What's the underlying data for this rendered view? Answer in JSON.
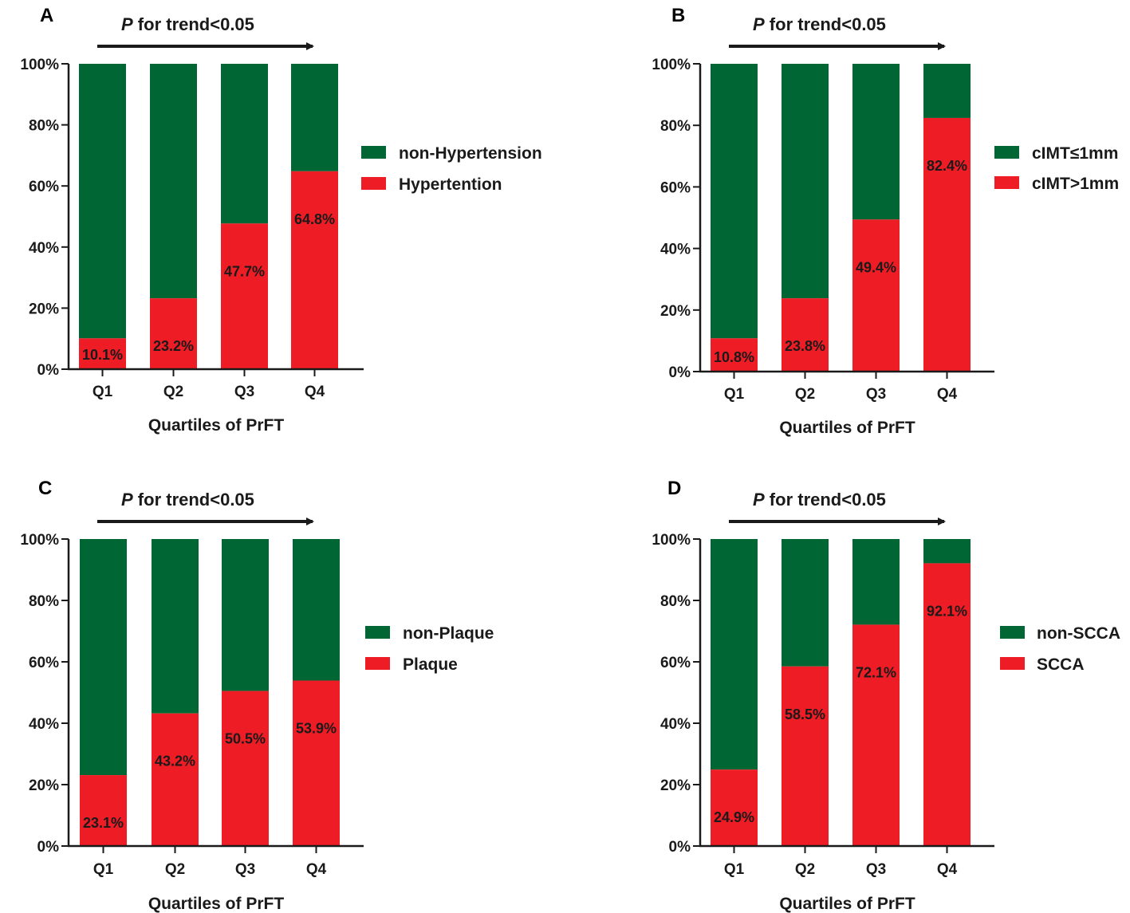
{
  "colors": {
    "negative": "#006633",
    "positive": "#ee1c25",
    "axis": "#1a1a1a"
  },
  "chart_data": [
    {
      "panel": "A",
      "type": "bar",
      "stacked": true,
      "annotation": {
        "italic": "P",
        "text": " for trend<0.05"
      },
      "categories": [
        "Q1",
        "Q2",
        "Q3",
        "Q4"
      ],
      "series": [
        {
          "name": "non-Hypertension",
          "values": [
            89.9,
            76.8,
            52.3,
            35.2
          ]
        },
        {
          "name": "Hypertention",
          "values": [
            10.1,
            23.2,
            47.7,
            64.8
          ]
        }
      ],
      "labels": [
        "10.1%",
        "23.2%",
        "47.7%",
        "64.8%"
      ],
      "yticks": [
        "0%",
        "20%",
        "40%",
        "60%",
        "80%",
        "100%"
      ],
      "xlabel": "Quartiles of PrFT",
      "ylim": [
        0,
        100
      ],
      "legend_position": "right"
    },
    {
      "panel": "B",
      "type": "bar",
      "stacked": true,
      "annotation": {
        "italic": "P",
        "text": " for trend<0.05"
      },
      "categories": [
        "Q1",
        "Q2",
        "Q3",
        "Q4"
      ],
      "series": [
        {
          "name": "cIMT≤1mm",
          "values": [
            89.2,
            76.2,
            50.6,
            17.6
          ]
        },
        {
          "name": "cIMT>1mm",
          "values": [
            10.8,
            23.8,
            49.4,
            82.4
          ]
        }
      ],
      "labels": [
        "10.8%",
        "23.8%",
        "49.4%",
        "82.4%"
      ],
      "yticks": [
        "0%",
        "20%",
        "40%",
        "60%",
        "80%",
        "100%"
      ],
      "xlabel": "Quartiles of PrFT",
      "ylim": [
        0,
        100
      ],
      "legend_position": "right"
    },
    {
      "panel": "C",
      "type": "bar",
      "stacked": true,
      "annotation": {
        "italic": "P",
        "text": " for trend<0.05"
      },
      "categories": [
        "Q1",
        "Q2",
        "Q3",
        "Q4"
      ],
      "series": [
        {
          "name": "non-Plaque",
          "values": [
            76.9,
            56.8,
            49.5,
            46.1
          ]
        },
        {
          "name": "Plaque",
          "values": [
            23.1,
            43.2,
            50.5,
            53.9
          ]
        }
      ],
      "labels": [
        "23.1%",
        "43.2%",
        "50.5%",
        "53.9%"
      ],
      "yticks": [
        "0%",
        "20%",
        "40%",
        "60%",
        "80%",
        "100%"
      ],
      "xlabel": "Quartiles of PrFT",
      "ylim": [
        0,
        100
      ],
      "legend_position": "right"
    },
    {
      "panel": "D",
      "type": "bar",
      "stacked": true,
      "annotation": {
        "italic": "P",
        "text": " for trend<0.05"
      },
      "categories": [
        "Q1",
        "Q2",
        "Q3",
        "Q4"
      ],
      "series": [
        {
          "name": "non-SCCA",
          "values": [
            75.1,
            41.5,
            27.9,
            7.9
          ]
        },
        {
          "name": "SCCA",
          "values": [
            24.9,
            58.5,
            72.1,
            92.1
          ]
        }
      ],
      "labels": [
        "24.9%",
        "58.5%",
        "72.1%",
        "92.1%"
      ],
      "yticks": [
        "0%",
        "20%",
        "40%",
        "60%",
        "80%",
        "100%"
      ],
      "xlabel": "Quartiles of PrFT",
      "ylim": [
        0,
        100
      ],
      "legend_position": "right"
    }
  ]
}
